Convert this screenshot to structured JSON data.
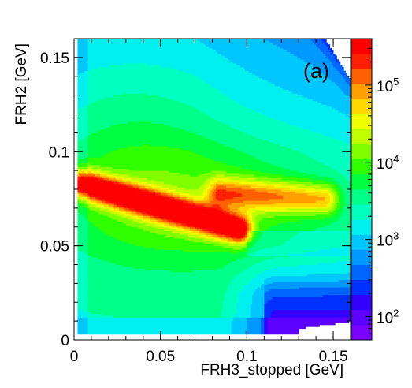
{
  "chart_data": {
    "type": "heatmap",
    "panel_label": "(a)",
    "xlabel": "FRH3_stopped [GeV]",
    "ylabel": "FRH2 [GeV]",
    "xlim": [
      0,
      0.16
    ],
    "ylim": [
      0,
      0.16
    ],
    "x_ticks": [
      {
        "value": 0,
        "label": "0"
      },
      {
        "value": 0.05,
        "label": "0.05"
      },
      {
        "value": 0.1,
        "label": "0.1"
      },
      {
        "value": 0.15,
        "label": "0.15"
      }
    ],
    "y_ticks": [
      {
        "value": 0,
        "label": "0"
      },
      {
        "value": 0.05,
        "label": "0.05"
      },
      {
        "value": 0.1,
        "label": "0.1"
      },
      {
        "value": 0.15,
        "label": "0.15"
      }
    ],
    "z_scale": "log",
    "z_range": [
      50,
      400000
    ],
    "colorbar_ticks": [
      {
        "value": 100,
        "base": "10",
        "exp": "2"
      },
      {
        "value": 1000,
        "base": "10",
        "exp": "3"
      },
      {
        "value": 10000,
        "base": "10",
        "exp": "4"
      },
      {
        "value": 100000,
        "base": "10",
        "exp": "5"
      }
    ],
    "palette": [
      "#7a00ff",
      "#5c00ff",
      "#3300ff",
      "#0030ff",
      "#0066ff",
      "#0099ff",
      "#00c8ff",
      "#00f0f0",
      "#00ffc0",
      "#00ff88",
      "#00ff40",
      "#30ff00",
      "#80ff00",
      "#c0ff00",
      "#f0ff00",
      "#ffd800",
      "#ffa000",
      "#ff6000",
      "#ff2000",
      "#ff0000"
    ],
    "features": {
      "main_band": {
        "from": [
          0.005,
          0.083
        ],
        "to": [
          0.095,
          0.059
        ],
        "peak_counts": 400000
      },
      "upper_ridge": {
        "from": [
          0.085,
          0.078
        ],
        "to": [
          0.145,
          0.075
        ],
        "peak_counts": 150000
      },
      "low_density_region": "lower right, x > 0.1 and y < 0.04"
    }
  }
}
